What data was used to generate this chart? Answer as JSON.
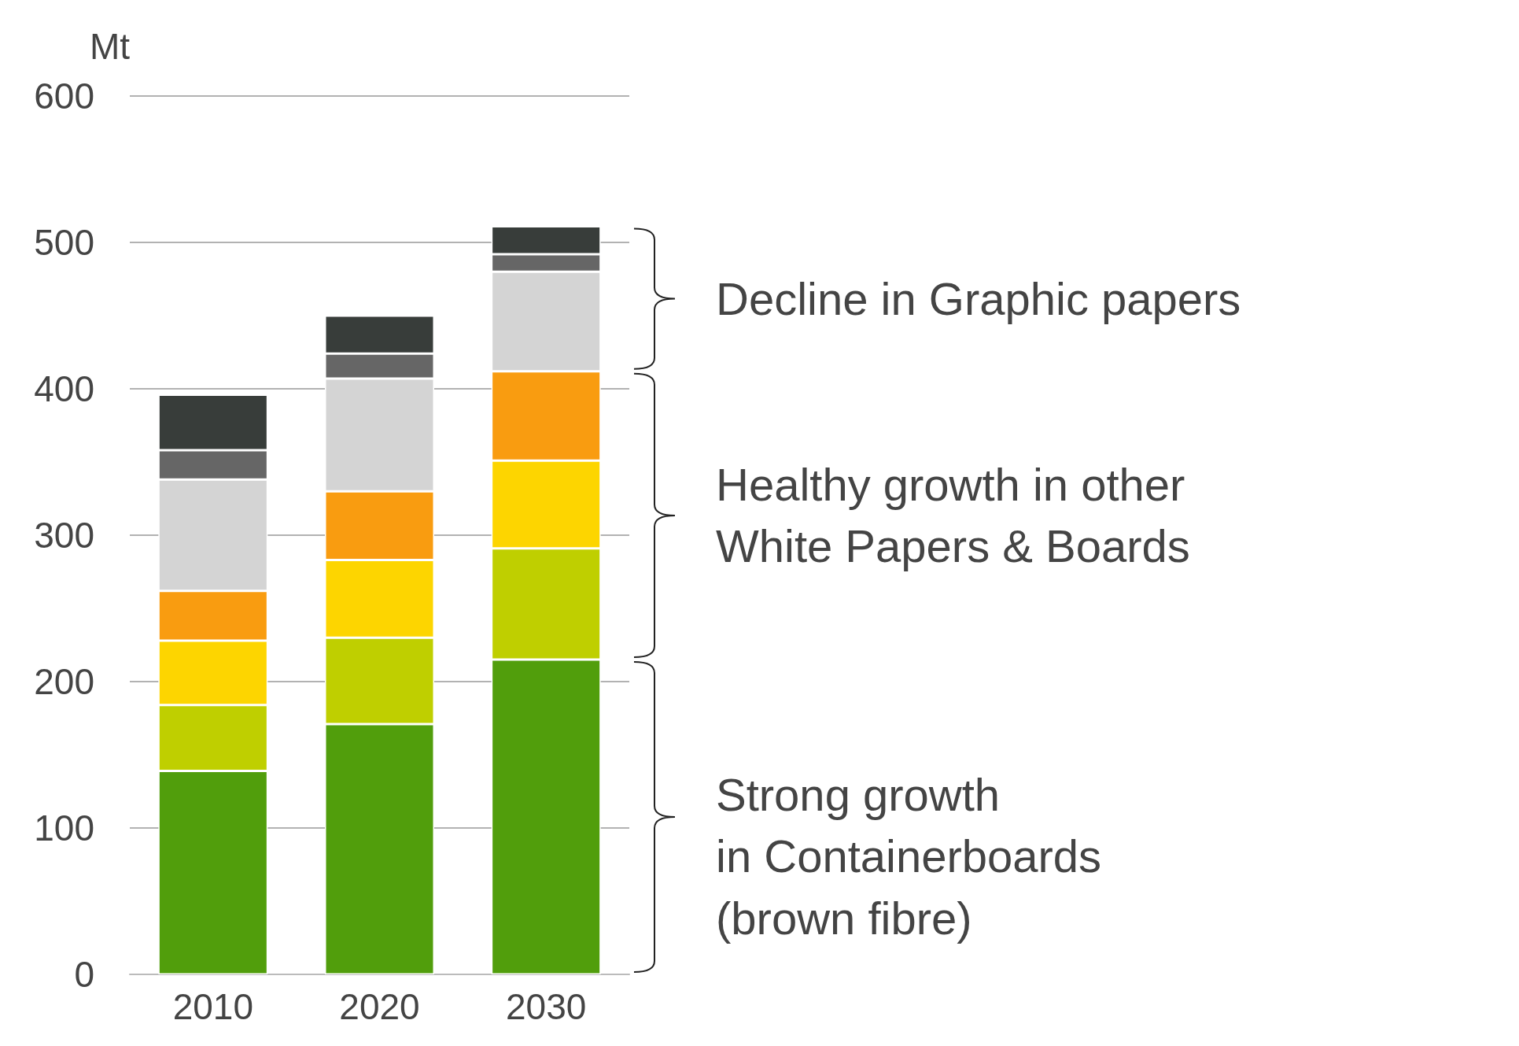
{
  "chart_data": {
    "type": "bar",
    "stacked": true,
    "ylabel": "Mt",
    "categories": [
      "2010",
      "2020",
      "2030"
    ],
    "series": [
      {
        "color": "#519e0c",
        "values": [
          139,
          171,
          215
        ]
      },
      {
        "color": "#bfcf00",
        "values": [
          45,
          59,
          76
        ]
      },
      {
        "color": "#fdd500",
        "values": [
          44,
          53,
          60
        ]
      },
      {
        "color": "#f99c10",
        "values": [
          34,
          47,
          61
        ]
      },
      {
        "color": "#d4d4d4",
        "values": [
          76,
          77,
          68
        ]
      },
      {
        "color": "#666666",
        "values": [
          20,
          17,
          12
        ]
      },
      {
        "color": "#383d3a",
        "values": [
          38,
          26,
          19
        ]
      }
    ],
    "ylim": [
      0,
      600
    ],
    "yticks": [
      0,
      100,
      200,
      300,
      400,
      500,
      600
    ],
    "grid": "y",
    "annotations": [
      "Decline in Graphic papers",
      "Healthy growth in other\nWhite Papers & Boards",
      "Strong growth\nin Containerboards\n(brown fibre)"
    ]
  }
}
